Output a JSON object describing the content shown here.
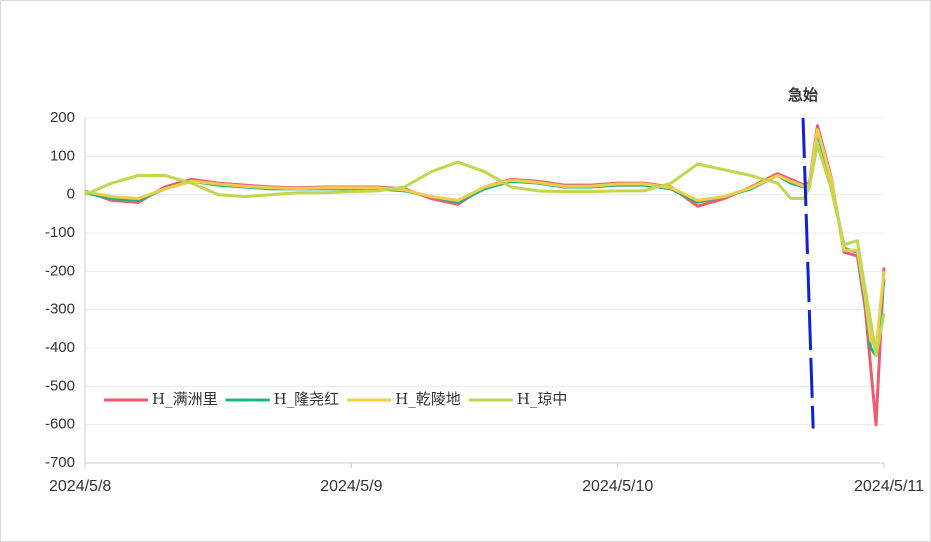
{
  "chart_data": {
    "type": "line",
    "x": [
      0,
      0.1,
      0.2,
      0.3,
      0.4,
      0.5,
      0.6,
      0.7,
      0.8,
      0.9,
      1.0,
      1.1,
      1.2,
      1.3,
      1.4,
      1.5,
      1.6,
      1.7,
      1.8,
      1.9,
      2.0,
      2.1,
      2.2,
      2.3,
      2.4,
      2.5,
      2.6,
      2.65,
      2.7,
      2.72,
      2.75,
      2.8,
      2.85,
      2.9,
      2.93,
      2.95,
      2.97,
      3.0
    ],
    "series": [
      {
        "name": "H_满洲里",
        "color": "#ee5b6e",
        "values": [
          10,
          -15,
          -20,
          20,
          40,
          30,
          25,
          20,
          18,
          20,
          20,
          20,
          15,
          -10,
          -25,
          20,
          40,
          35,
          25,
          25,
          30,
          30,
          20,
          -30,
          -10,
          20,
          55,
          40,
          25,
          30,
          180,
          50,
          -150,
          -160,
          -300,
          -450,
          -600,
          -190
        ]
      },
      {
        "name": "H_隆尧红",
        "color": "#1db584",
        "values": [
          5,
          -10,
          -15,
          15,
          35,
          25,
          20,
          15,
          15,
          15,
          15,
          15,
          10,
          -5,
          -20,
          15,
          35,
          30,
          20,
          20,
          25,
          25,
          15,
          -20,
          -5,
          15,
          50,
          30,
          20,
          25,
          160,
          40,
          -140,
          -150,
          -280,
          -400,
          -420,
          -220
        ]
      },
      {
        "name": "H_乾陵地",
        "color": "#f0cd4a",
        "values": [
          8,
          -5,
          -10,
          15,
          35,
          28,
          22,
          18,
          16,
          18,
          18,
          18,
          12,
          -5,
          -15,
          20,
          38,
          32,
          22,
          22,
          28,
          28,
          18,
          -15,
          -5,
          18,
          50,
          35,
          22,
          25,
          170,
          45,
          -145,
          -145,
          -270,
          -380,
          -400,
          -200
        ]
      },
      {
        "name": "H_琼中",
        "color": "#c2d64f",
        "values": [
          0,
          30,
          50,
          50,
          30,
          0,
          -5,
          0,
          5,
          5,
          8,
          10,
          20,
          60,
          85,
          60,
          20,
          10,
          8,
          8,
          10,
          10,
          30,
          80,
          65,
          50,
          30,
          -10,
          -10,
          20,
          130,
          20,
          -130,
          -120,
          -250,
          -330,
          -420,
          -310
        ]
      }
    ],
    "xlim": [
      0,
      3
    ],
    "xticks": [
      {
        "value": 0,
        "label": "2024/5/8"
      },
      {
        "value": 1,
        "label": "2024/5/9"
      },
      {
        "value": 2,
        "label": "2024/5/10"
      },
      {
        "value": 3,
        "label": "2024/5/11"
      }
    ],
    "ylim": [
      -700,
      200
    ],
    "yticks": [
      -700,
      -600,
      -500,
      -400,
      -300,
      -200,
      -100,
      0,
      100,
      200
    ],
    "grid": true,
    "legend": "bottom-left",
    "annotation": {
      "text": "急始",
      "x": [
        2.696,
        2.734
      ],
      "y": [
        200,
        -610
      ],
      "color": "#1020d8"
    }
  }
}
